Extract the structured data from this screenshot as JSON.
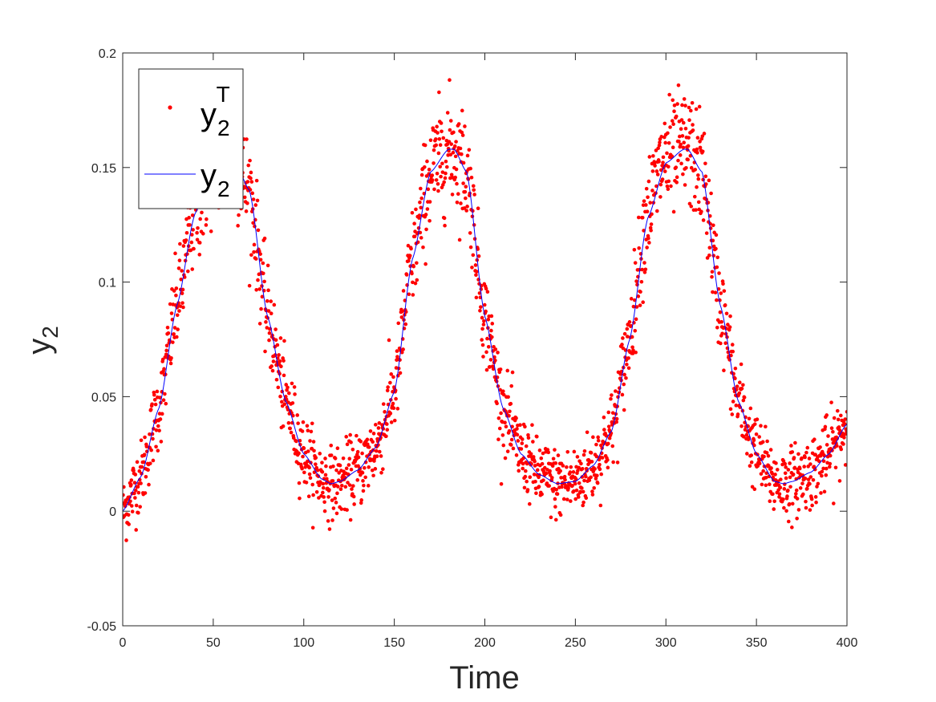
{
  "chart_data": {
    "type": "scatter",
    "title": "",
    "xlabel": "Time",
    "ylabel": {
      "base": "y",
      "sub": "2"
    },
    "xlim": [
      0,
      400
    ],
    "ylim": [
      -0.05,
      0.2
    ],
    "xticks": [
      0,
      50,
      100,
      150,
      200,
      250,
      300,
      350,
      400
    ],
    "xtick_labels": [
      "0",
      "50",
      "100",
      "150",
      "200",
      "250",
      "300",
      "350",
      "400"
    ],
    "yticks": [
      -0.05,
      0,
      0.05,
      0.1,
      0.15,
      0.2
    ],
    "ytick_labels": [
      "-0.05",
      "0",
      "0.05",
      "0.1",
      "0.15",
      "0.2"
    ],
    "grid": false,
    "legend_position": "top-left",
    "series": [
      {
        "name": {
          "base": "y",
          "sub": "2",
          "sup": "T"
        },
        "kind": "scatter",
        "color": "#ff0000",
        "note_points": "noisy observations of the model curve; generated around the curve below",
        "n_points": 2000,
        "noise_std": 0.009
      },
      {
        "name": {
          "base": "y",
          "sub": "2"
        },
        "kind": "line",
        "color": "#0000ff",
        "x": [
          0,
          10,
          20,
          30,
          40,
          50,
          60,
          70,
          80,
          90,
          100,
          110,
          115,
          120,
          130,
          140,
          150,
          160,
          170,
          180,
          183,
          190,
          200,
          210,
          220,
          230,
          240,
          250,
          260,
          270,
          280,
          290,
          300,
          310,
          312,
          320,
          330,
          340,
          350,
          360,
          365,
          370,
          380,
          390,
          400
        ],
        "y": [
          0.0,
          0.015,
          0.045,
          0.09,
          0.13,
          0.152,
          0.157,
          0.14,
          0.085,
          0.048,
          0.025,
          0.014,
          0.012,
          0.013,
          0.018,
          0.028,
          0.052,
          0.11,
          0.148,
          0.158,
          0.158,
          0.148,
          0.085,
          0.045,
          0.025,
          0.016,
          0.012,
          0.013,
          0.02,
          0.035,
          0.075,
          0.128,
          0.152,
          0.158,
          0.158,
          0.148,
          0.09,
          0.048,
          0.025,
          0.013,
          0.012,
          0.013,
          0.017,
          0.025,
          0.038
        ]
      }
    ]
  }
}
